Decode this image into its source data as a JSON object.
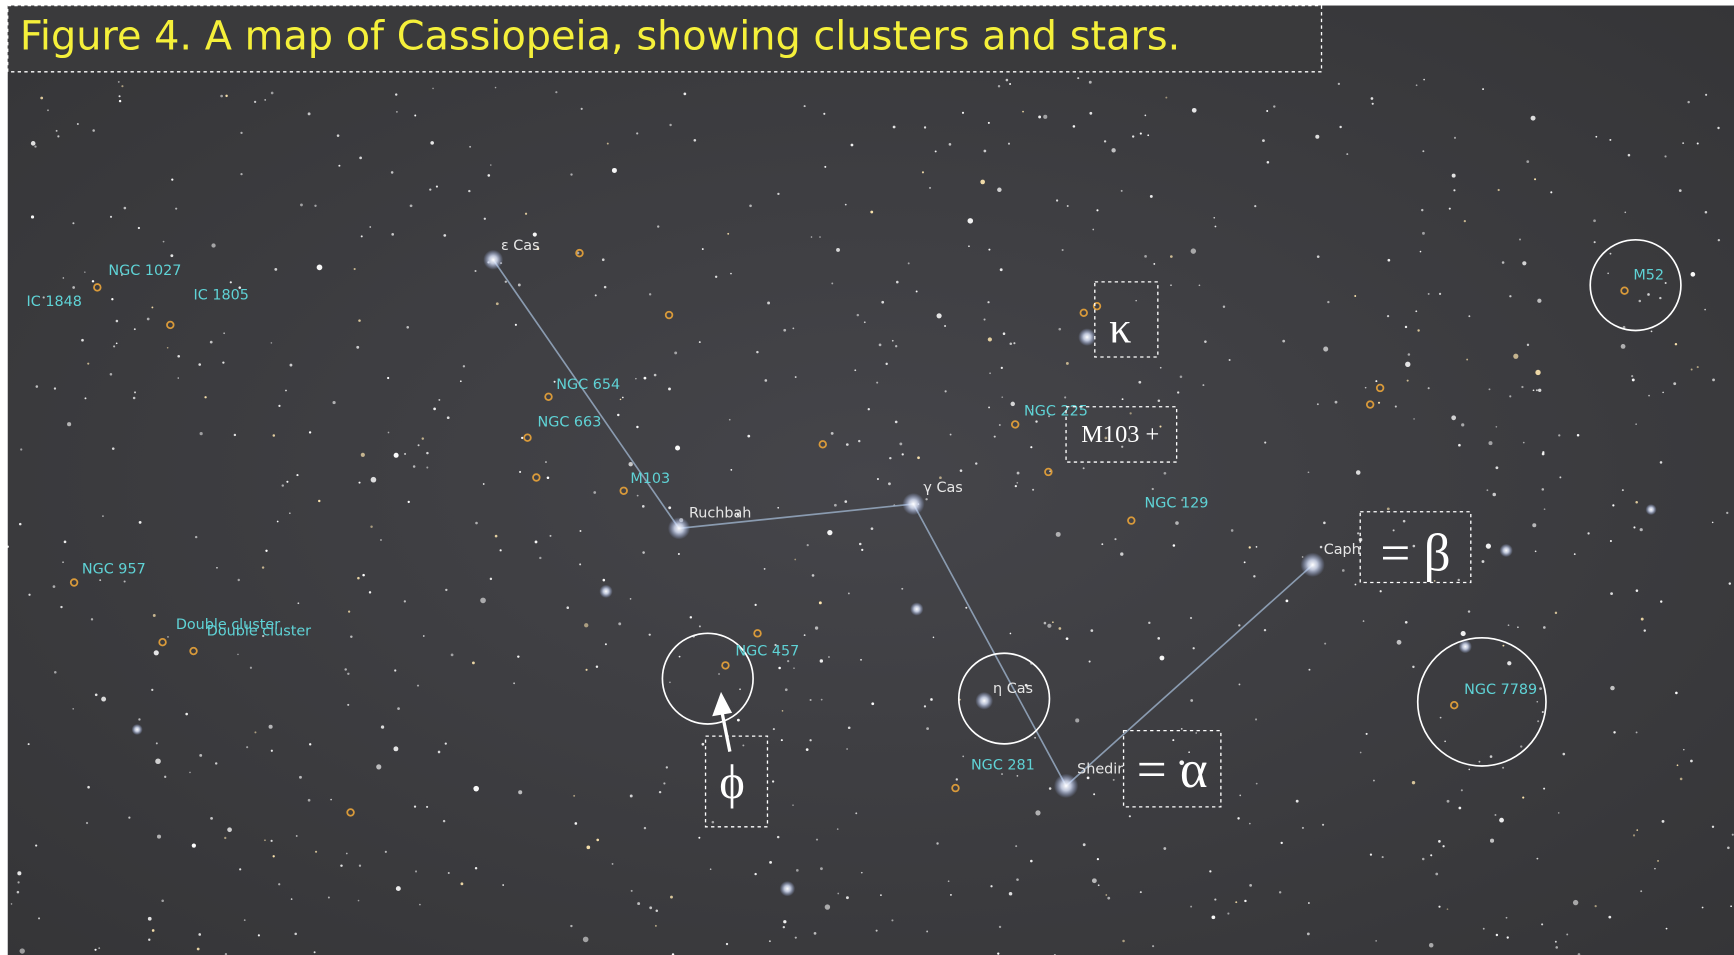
{
  "title": "Figure 4.  A map of Cassiopeia, showing clusters and stars.",
  "labels": [
    "ε Cas",
    "NGC 1027",
    "IC 1848",
    "IC 1805",
    "NGC 654",
    "NGC 663",
    "M103",
    "Ruchbah",
    "γ Cas",
    "NGC 225",
    "NGC 129",
    "Caph",
    "NGC 957",
    "Double cluster",
    "Double cluster",
    "NGC 457",
    "η Cas",
    "NGC 281",
    "Shedir",
    "NGC 7789",
    "M52"
  ],
  "annotations": [
    "κ",
    "M103 +",
    "= β",
    "ϕ",
    "= α"
  ]
}
